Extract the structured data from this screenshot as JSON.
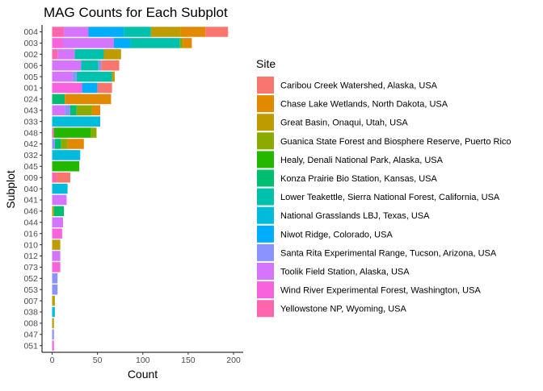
{
  "chart_data": {
    "type": "bar",
    "orientation": "horizontal",
    "stacked": true,
    "title": "MAG Counts for Each Subplot",
    "xlabel": "Count",
    "ylabel": "Subplot",
    "xlim": [
      0,
      200
    ],
    "xticks": [
      0,
      50,
      100,
      150,
      200
    ],
    "grid": false,
    "legend_position": "right",
    "legend_title": "Site",
    "sites": [
      {
        "name": "Caribou Creek Watershed, Alaska, USA",
        "color": "#F8766D"
      },
      {
        "name": "Chase Lake Wetlands, North Dakota, USA",
        "color": "#E18A00"
      },
      {
        "name": "Great Basin, Onaqui, Utah, USA",
        "color": "#BE9C00"
      },
      {
        "name": "Guanica State Forest and Biosphere Reserve, Puerto Rico",
        "color": "#8CAB00"
      },
      {
        "name": "Healy, Denali National Park, Alaska, USA",
        "color": "#24B700"
      },
      {
        "name": "Konza Prairie Bio Station, Kansas, USA",
        "color": "#00BE70"
      },
      {
        "name": "Lower Teakettle, Sierra National Forest, California, USA",
        "color": "#00C1AB"
      },
      {
        "name": "National Grasslands LBJ, Texas, USA",
        "color": "#00BBDA"
      },
      {
        "name": "Niwot Ridge, Colorado, USA",
        "color": "#00ACFC"
      },
      {
        "name": "Santa Rita Experimental Range, Tucson, Arizona, USA",
        "color": "#8B93FF"
      },
      {
        "name": "Toolik Field Station, Alaska, USA",
        "color": "#D575FE"
      },
      {
        "name": "Wind River Experimental Forest, Washington, USA",
        "color": "#F962DD"
      },
      {
        "name": "Yellowstone NP, Wyoming, USA",
        "color": "#FF65AC"
      }
    ],
    "bars": [
      {
        "subplot": "004",
        "segments": [
          [
            "Yellowstone NP, Wyoming, USA",
            13
          ],
          [
            "Toolik Field Station, Alaska, USA",
            27
          ],
          [
            "Niwot Ridge, Colorado, USA",
            39
          ],
          [
            "Lower Teakettle, Sierra National Forest, California, USA",
            30
          ],
          [
            "Great Basin, Onaqui, Utah, USA",
            33
          ],
          [
            "Chase Lake Wetlands, North Dakota, USA",
            27
          ],
          [
            "Caribou Creek Watershed, Alaska, USA",
            25
          ]
        ]
      },
      {
        "subplot": "003",
        "segments": [
          [
            "Wind River Experimental Forest, Washington, USA",
            12
          ],
          [
            "Toolik Field Station, Alaska, USA",
            56
          ],
          [
            "Niwot Ridge, Colorado, USA",
            18
          ],
          [
            "Lower Teakettle, Sierra National Forest, California, USA",
            55
          ],
          [
            "Guanica State Forest and Biosphere Reserve, Puerto Rico",
            3
          ],
          [
            "Chase Lake Wetlands, North Dakota, USA",
            10
          ]
        ]
      },
      {
        "subplot": "002",
        "segments": [
          [
            "Yellowstone NP, Wyoming, USA",
            6
          ],
          [
            "Toolik Field Station, Alaska, USA",
            19
          ],
          [
            "Lower Teakettle, Sierra National Forest, California, USA",
            32
          ],
          [
            "Great Basin, Onaqui, Utah, USA",
            19
          ]
        ]
      },
      {
        "subplot": "006",
        "segments": [
          [
            "Toolik Field Station, Alaska, USA",
            32
          ],
          [
            "Lower Teakettle, Sierra National Forest, California, USA",
            19
          ],
          [
            "Santa Rita Experimental Range, Tucson, Arizona, USA",
            3
          ],
          [
            "Caribou Creek Watershed, Alaska, USA",
            20
          ]
        ]
      },
      {
        "subplot": "005",
        "segments": [
          [
            "Toolik Field Station, Alaska, USA",
            22
          ],
          [
            "Santa Rita Experimental Range, Tucson, Arizona, USA",
            5
          ],
          [
            "Lower Teakettle, Sierra National Forest, California, USA",
            39
          ],
          [
            "Great Basin, Onaqui, Utah, USA",
            3
          ]
        ]
      },
      {
        "subplot": "001",
        "segments": [
          [
            "Wind River Experimental Forest, Washington, USA",
            33
          ],
          [
            "Niwot Ridge, Colorado, USA",
            17
          ],
          [
            "Caribou Creek Watershed, Alaska, USA",
            16
          ]
        ]
      },
      {
        "subplot": "024",
        "segments": [
          [
            "Konza Prairie Bio Station, Kansas, USA",
            14
          ],
          [
            "Chase Lake Wetlands, North Dakota, USA",
            51
          ]
        ]
      },
      {
        "subplot": "043",
        "segments": [
          [
            "Toolik Field Station, Alaska, USA",
            14
          ],
          [
            "Santa Rita Experimental Range, Tucson, Arizona, USA",
            6
          ],
          [
            "Konza Prairie Bio Station, Kansas, USA",
            7
          ],
          [
            "Guanica State Forest and Biosphere Reserve, Puerto Rico",
            17
          ],
          [
            "Chase Lake Wetlands, North Dakota, USA",
            9
          ]
        ]
      },
      {
        "subplot": "033",
        "segments": [
          [
            "National Grasslands LBJ, Texas, USA",
            53
          ]
        ]
      },
      {
        "subplot": "048",
        "segments": [
          [
            "Yellowstone NP, Wyoming, USA",
            2
          ],
          [
            "Healy, Denali National Park, Alaska, USA",
            41
          ],
          [
            "Guanica State Forest and Biosphere Reserve, Puerto Rico",
            6
          ]
        ]
      },
      {
        "subplot": "042",
        "segments": [
          [
            "Santa Rita Experimental Range, Tucson, Arizona, USA",
            3
          ],
          [
            "Konza Prairie Bio Station, Kansas, USA",
            7
          ],
          [
            "Guanica State Forest and Biosphere Reserve, Puerto Rico",
            7
          ],
          [
            "Chase Lake Wetlands, North Dakota, USA",
            18
          ]
        ]
      },
      {
        "subplot": "032",
        "segments": [
          [
            "National Grasslands LBJ, Texas, USA",
            31
          ]
        ]
      },
      {
        "subplot": "045",
        "segments": [
          [
            "Healy, Denali National Park, Alaska, USA",
            30
          ]
        ]
      },
      {
        "subplot": "009",
        "segments": [
          [
            "Yellowstone NP, Wyoming, USA",
            5
          ],
          [
            "Caribou Creek Watershed, Alaska, USA",
            15
          ]
        ]
      },
      {
        "subplot": "040",
        "segments": [
          [
            "National Grasslands LBJ, Texas, USA",
            17
          ]
        ]
      },
      {
        "subplot": "041",
        "segments": [
          [
            "Toolik Field Station, Alaska, USA",
            16
          ]
        ]
      },
      {
        "subplot": "046",
        "segments": [
          [
            "Great Basin, Onaqui, Utah, USA",
            2
          ],
          [
            "Konza Prairie Bio Station, Kansas, USA",
            11
          ]
        ]
      },
      {
        "subplot": "044",
        "segments": [
          [
            "Toolik Field Station, Alaska, USA",
            12
          ]
        ]
      },
      {
        "subplot": "016",
        "segments": [
          [
            "Wind River Experimental Forest, Washington, USA",
            11
          ]
        ]
      },
      {
        "subplot": "010",
        "segments": [
          [
            "Great Basin, Onaqui, Utah, USA",
            9
          ]
        ]
      },
      {
        "subplot": "012",
        "segments": [
          [
            "Toolik Field Station, Alaska, USA",
            9
          ]
        ]
      },
      {
        "subplot": "073",
        "segments": [
          [
            "Wind River Experimental Forest, Washington, USA",
            9
          ]
        ]
      },
      {
        "subplot": "052",
        "segments": [
          [
            "Santa Rita Experimental Range, Tucson, Arizona, USA",
            6
          ]
        ]
      },
      {
        "subplot": "053",
        "segments": [
          [
            "Santa Rita Experimental Range, Tucson, Arizona, USA",
            6
          ]
        ]
      },
      {
        "subplot": "007",
        "segments": [
          [
            "Great Basin, Onaqui, Utah, USA",
            3
          ]
        ]
      },
      {
        "subplot": "038",
        "segments": [
          [
            "National Grasslands LBJ, Texas, USA",
            3
          ]
        ]
      },
      {
        "subplot": "008",
        "segments": [
          [
            "Great Basin, Onaqui, Utah, USA",
            2
          ]
        ]
      },
      {
        "subplot": "047",
        "segments": [
          [
            "Santa Rita Experimental Range, Tucson, Arizona, USA",
            2
          ]
        ]
      },
      {
        "subplot": "051",
        "segments": [
          [
            "Wind River Experimental Forest, Washington, USA",
            2
          ]
        ]
      }
    ]
  }
}
